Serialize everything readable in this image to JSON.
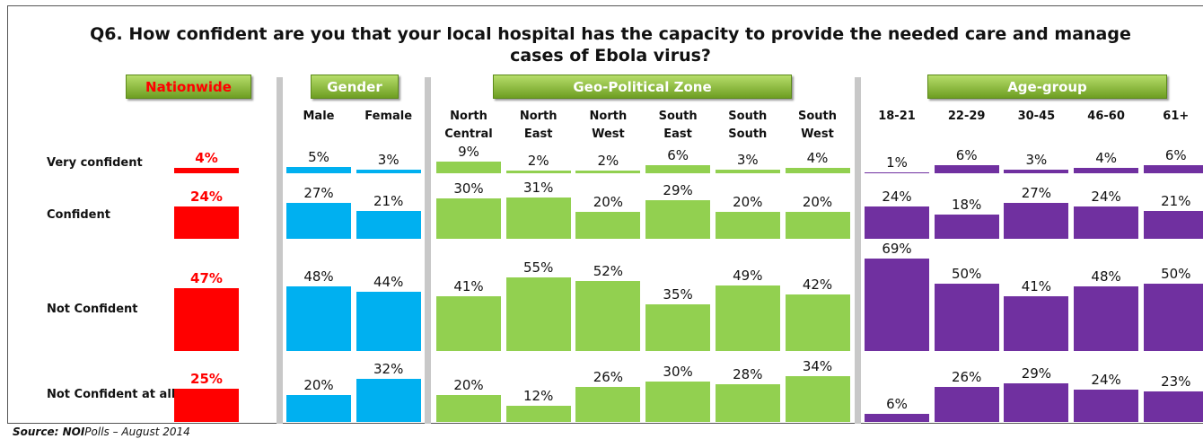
{
  "chart_data": {
    "type": "grouped_panel_bar",
    "title": "Q6. How confident are you that your local hospital has the capacity to provide the needed care and manage cases of Ebola virus?",
    "row_labels": [
      "Very confident",
      "Confident",
      "Not Confident",
      "Not Confident at all"
    ],
    "groups": [
      {
        "name": "Nationwide",
        "label_color": "#ff0000",
        "color": "#ff0000",
        "columns": [
          {
            "values": [
              4,
              24,
              47,
              25
            ],
            "value_labels": [
              "4%",
              "24%",
              "47%",
              "25%"
            ]
          }
        ]
      },
      {
        "name": "Gender",
        "label_color": "#ffffff",
        "color": "#00b0f0",
        "columns": [
          {
            "name": "Male",
            "values": [
              5,
              27,
              48,
              20
            ],
            "value_labels": [
              "5%",
              "27%",
              "48%",
              "20%"
            ]
          },
          {
            "name": "Female",
            "values": [
              3,
              21,
              44,
              32
            ],
            "value_labels": [
              "3%",
              "21%",
              "44%",
              "32%"
            ]
          }
        ]
      },
      {
        "name": "Geo-Political Zone",
        "label_color": "#ffffff",
        "color": "#92d050",
        "columns": [
          {
            "name": "North Central",
            "values": [
              9,
              30,
              41,
              20
            ],
            "value_labels": [
              "9%",
              "30%",
              "41%",
              "20%"
            ]
          },
          {
            "name": "North East",
            "values": [
              2,
              31,
              55,
              12
            ],
            "value_labels": [
              "2%",
              "31%",
              "55%",
              "12%"
            ]
          },
          {
            "name": "North West",
            "values": [
              2,
              20,
              52,
              26
            ],
            "value_labels": [
              "2%",
              "20%",
              "52%",
              "26%"
            ]
          },
          {
            "name": "South East",
            "values": [
              6,
              29,
              35,
              30
            ],
            "value_labels": [
              "6%",
              "29%",
              "35%",
              "30%"
            ]
          },
          {
            "name": "South South",
            "values": [
              3,
              20,
              49,
              28
            ],
            "value_labels": [
              "3%",
              "20%",
              "49%",
              "28%"
            ]
          },
          {
            "name": "South West",
            "values": [
              4,
              20,
              42,
              34
            ],
            "value_labels": [
              "4%",
              "20%",
              "42%",
              "34%"
            ]
          }
        ]
      },
      {
        "name": "Age-group",
        "label_color": "#ffffff",
        "color": "#7030a0",
        "columns": [
          {
            "name": "18-21",
            "values": [
              1,
              24,
              69,
              6
            ],
            "value_labels": [
              "1%",
              "24%",
              "69%",
              "6%"
            ]
          },
          {
            "name": "22-29",
            "values": [
              6,
              18,
              50,
              26
            ],
            "value_labels": [
              "6%",
              "18%",
              "50%",
              "26%"
            ]
          },
          {
            "name": "30-45",
            "values": [
              3,
              27,
              41,
              29
            ],
            "value_labels": [
              "3%",
              "27%",
              "41%",
              "29%"
            ]
          },
          {
            "name": "46-60",
            "values": [
              4,
              24,
              48,
              24
            ],
            "value_labels": [
              "4%",
              "24%",
              "48%",
              "24%"
            ]
          },
          {
            "name": "61+",
            "values": [
              6,
              21,
              50,
              23
            ],
            "value_labels": [
              "6%",
              "21%",
              "50%",
              "23%"
            ]
          }
        ]
      }
    ],
    "source": [
      "Source: NOI",
      "Polls – August 2014"
    ]
  }
}
